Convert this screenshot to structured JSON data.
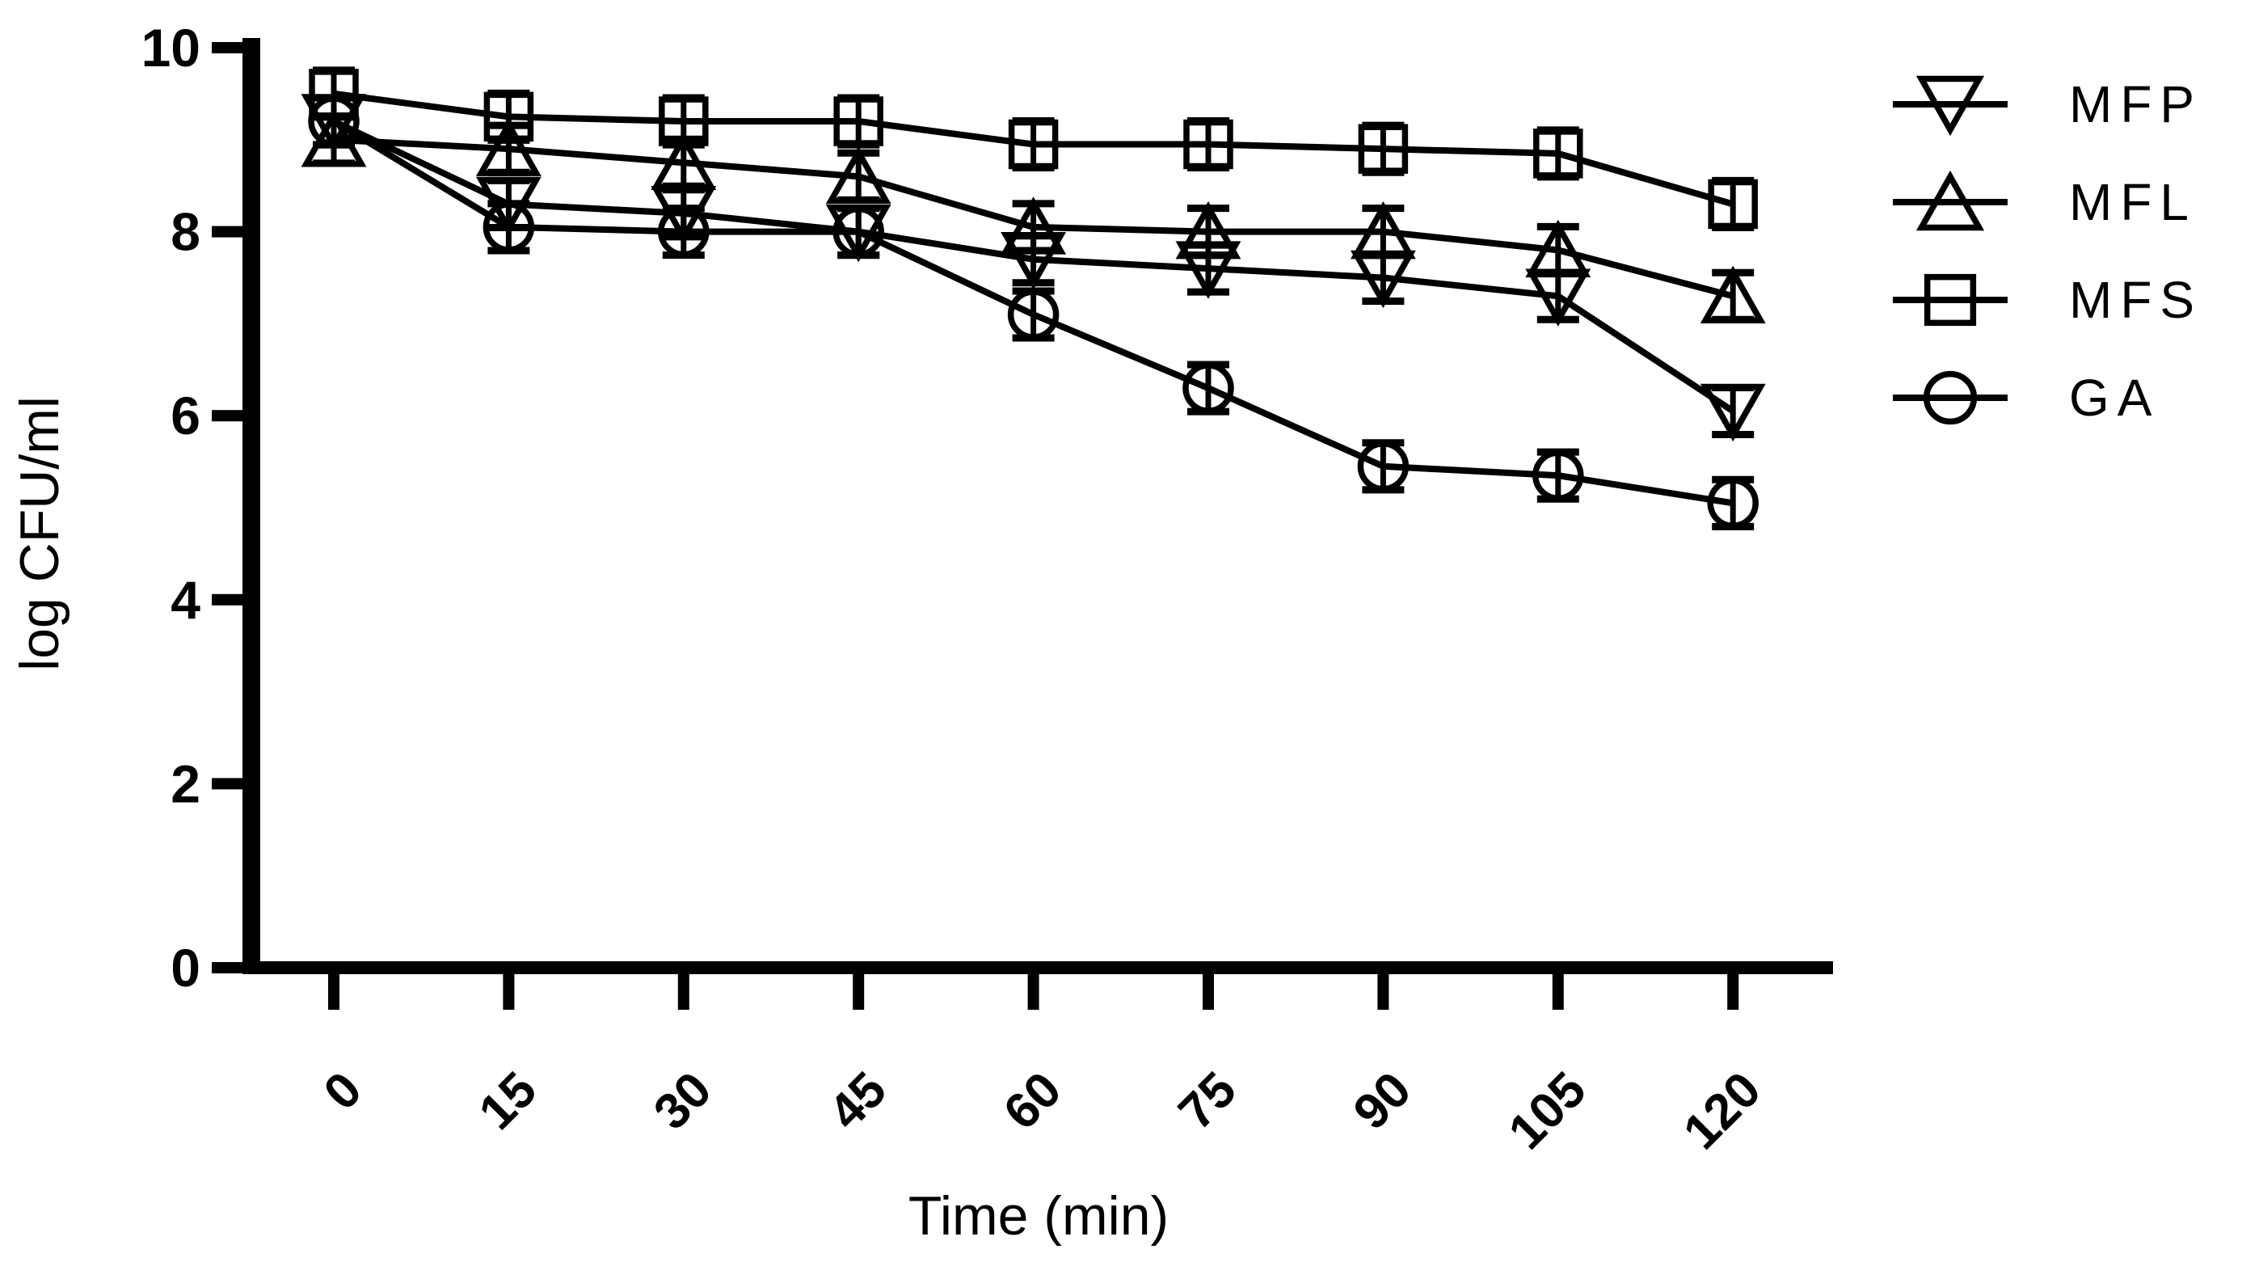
{
  "figure": {
    "background": "#ffffff",
    "ink": "#000000"
  },
  "chart_data": {
    "type": "line",
    "title": "",
    "xlabel": "Time (min)",
    "ylabel": "log CFU/ml",
    "x": [
      0,
      15,
      30,
      45,
      60,
      75,
      90,
      105,
      120
    ],
    "xticks": [
      0,
      15,
      30,
      45,
      60,
      75,
      90,
      105,
      120
    ],
    "yticks": [
      0,
      2,
      4,
      6,
      8,
      10
    ],
    "xlim": [
      0,
      120
    ],
    "ylim": [
      0,
      10
    ],
    "grid": false,
    "legend_position": "right-outside",
    "error_bar_half": 0.22,
    "series": [
      {
        "name": "MFP",
        "marker": "triangle-down",
        "color": "#000000",
        "values": [
          9.2,
          8.3,
          8.2,
          8.0,
          7.7,
          7.6,
          7.5,
          7.3,
          6.05
        ]
      },
      {
        "name": "MFL",
        "marker": "triangle-up",
        "color": "#000000",
        "values": [
          9.0,
          8.9,
          8.75,
          8.6,
          8.05,
          8.0,
          8.0,
          7.8,
          7.3
        ]
      },
      {
        "name": "MFS",
        "marker": "square",
        "color": "#000000",
        "values": [
          9.5,
          9.25,
          9.2,
          9.2,
          8.95,
          8.95,
          8.9,
          8.85,
          8.3
        ]
      },
      {
        "name": "GA",
        "marker": "circle",
        "color": "#000000",
        "values": [
          9.2,
          8.05,
          8.0,
          8.0,
          7.1,
          6.3,
          5.45,
          5.35,
          5.05
        ]
      }
    ]
  },
  "legend": {
    "items": [
      {
        "label": "MFP",
        "marker": "triangle-down"
      },
      {
        "label": "MFL",
        "marker": "triangle-up"
      },
      {
        "label": "MFS",
        "marker": "square"
      },
      {
        "label": "GA",
        "marker": "circle"
      }
    ]
  }
}
